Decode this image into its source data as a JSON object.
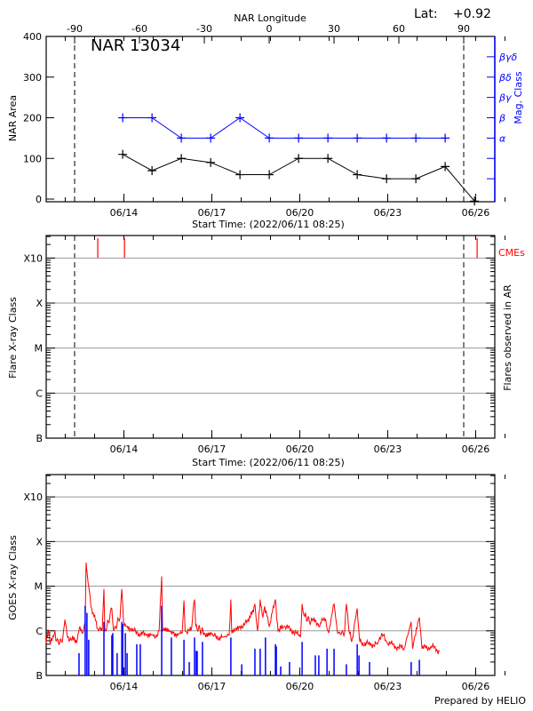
{
  "chart_data": [
    {
      "type": "line",
      "title": "NAR 13034",
      "lat_label": "Lat:",
      "lat_value": "+0.92",
      "top_axis_label": "NAR Longitude",
      "top_ticks": [
        -90,
        -60,
        -30,
        0,
        30,
        60,
        90
      ],
      "longitude_markers": [
        -90,
        90
      ],
      "xlabel": "Start Time: (2022/06/11 08:25)",
      "x_unit": "days since start",
      "xlim": [
        0,
        15.3
      ],
      "date_ticks": [
        {
          "label": "06/14",
          "t": 2.65
        },
        {
          "label": "06/17",
          "t": 5.65
        },
        {
          "label": "06/20",
          "t": 8.65
        },
        {
          "label": "06/23",
          "t": 11.65
        },
        {
          "label": "06/26",
          "t": 14.65
        }
      ],
      "ylabel": "NAR Area",
      "ylim": [
        0,
        400
      ],
      "yticks": [
        0,
        100,
        200,
        300,
        400
      ],
      "y2label": "Mag. Class",
      "y2ticks": [
        {
          "label": "α",
          "v": 150
        },
        {
          "label": "β",
          "v": 200
        },
        {
          "label": "βγ",
          "v": 250
        },
        {
          "label": "βδ",
          "v": 300
        },
        {
          "label": "βγδ",
          "v": 350
        }
      ],
      "series": [
        {
          "name": "NAR Area",
          "color": "#000000",
          "t": [
            2.61,
            3.61,
            4.61,
            5.61,
            6.61,
            7.61,
            8.61,
            9.61,
            10.61,
            11.61,
            12.61,
            13.61,
            14.61
          ],
          "values": [
            110,
            70,
            100,
            90,
            60,
            60,
            100,
            100,
            60,
            50,
            50,
            80,
            -5
          ]
        },
        {
          "name": "Mag. Class",
          "color": "#0000ff",
          "t": [
            2.61,
            3.61,
            4.61,
            5.61,
            6.61,
            7.61,
            8.61,
            9.61,
            10.61,
            11.61,
            12.61,
            13.61
          ],
          "values": [
            "β",
            "β",
            "α",
            "α",
            "β",
            "α",
            "α",
            "α",
            "α",
            "α",
            "α",
            "α"
          ]
        }
      ]
    },
    {
      "type": "scatter",
      "xlabel": "Start Time: (2022/06/11 08:25)",
      "ylabel": "Flare X-ray Class",
      "y2label": "Flares observed in AR",
      "yticks": [
        "B",
        "C",
        "M",
        "X",
        "X10"
      ],
      "legend": "CMEs",
      "cme_color": "#ff0000",
      "cmes_t": [
        1.76,
        2.67,
        14.7
      ],
      "flares": []
    },
    {
      "type": "line",
      "ylabel": "GOES X-ray Class",
      "yticks": [
        "B",
        "C",
        "M",
        "X",
        "X10"
      ],
      "ylim": [
        0,
        4.3
      ],
      "credit": "Prepared by HELIO",
      "series": [
        {
          "name": "GOES flux",
          "color": "#ff0000",
          "points": [
            [
              0,
              0.73
            ],
            [
              0.09,
              1.0
            ],
            [
              0.12,
              0.75
            ],
            [
              0.3,
              1.0
            ],
            [
              0.33,
              0.78
            ],
            [
              0.55,
              0.75
            ],
            [
              0.64,
              1.25
            ],
            [
              0.73,
              0.85
            ],
            [
              0.85,
              0.8
            ],
            [
              1.06,
              0.8
            ],
            [
              1.15,
              1.1
            ],
            [
              1.25,
              0.95
            ],
            [
              1.33,
              1.2
            ],
            [
              1.36,
              2.53
            ],
            [
              1.45,
              2.0
            ],
            [
              1.55,
              1.5
            ],
            [
              1.76,
              1.05
            ],
            [
              1.91,
              1.0
            ],
            [
              1.97,
              1.94
            ],
            [
              2.0,
              1.0
            ],
            [
              2.12,
              1.2
            ],
            [
              2.24,
              1.5
            ],
            [
              2.3,
              1.0
            ],
            [
              2.52,
              1.3
            ],
            [
              2.58,
              1.94
            ],
            [
              2.64,
              1.2
            ],
            [
              2.82,
              1.1
            ],
            [
              2.97,
              1.0
            ],
            [
              3.12,
              0.95
            ],
            [
              3.42,
              0.9
            ],
            [
              3.73,
              0.85
            ],
            [
              3.85,
              1.0
            ],
            [
              3.94,
              2.22
            ],
            [
              3.97,
              1.0
            ],
            [
              4.33,
              0.95
            ],
            [
              4.64,
              0.95
            ],
            [
              4.7,
              1.68
            ],
            [
              4.74,
              1.0
            ],
            [
              4.94,
              1.0
            ],
            [
              5.06,
              1.7
            ],
            [
              5.1,
              1.1
            ],
            [
              5.39,
              0.95
            ],
            [
              5.7,
              0.88
            ],
            [
              6.0,
              0.85
            ],
            [
              6.24,
              0.9
            ],
            [
              6.3,
              1.7
            ],
            [
              6.33,
              0.95
            ],
            [
              6.61,
              1.1
            ],
            [
              6.91,
              1.2
            ],
            [
              7.12,
              1.6
            ],
            [
              7.21,
              1.0
            ],
            [
              7.3,
              1.7
            ],
            [
              7.39,
              1.3
            ],
            [
              7.45,
              1.55
            ],
            [
              7.61,
              1.1
            ],
            [
              7.82,
              1.7
            ],
            [
              7.91,
              1.0
            ],
            [
              8.12,
              1.1
            ],
            [
              8.42,
              1.0
            ],
            [
              8.67,
              0.85
            ],
            [
              8.73,
              1.6
            ],
            [
              8.79,
              1.35
            ],
            [
              9.03,
              1.2
            ],
            [
              9.18,
              1.25
            ],
            [
              9.33,
              1.1
            ],
            [
              9.48,
              1.3
            ],
            [
              9.64,
              0.95
            ],
            [
              9.82,
              1.6
            ],
            [
              9.94,
              0.95
            ],
            [
              10.18,
              0.95
            ],
            [
              10.24,
              1.6
            ],
            [
              10.33,
              1.0
            ],
            [
              10.42,
              0.75
            ],
            [
              10.61,
              1.5
            ],
            [
              10.7,
              0.75
            ],
            [
              11.0,
              0.7
            ],
            [
              11.3,
              0.7
            ],
            [
              11.45,
              0.95
            ],
            [
              11.61,
              0.75
            ],
            [
              11.91,
              0.65
            ],
            [
              12.21,
              0.6
            ],
            [
              12.45,
              1.2
            ],
            [
              12.5,
              0.6
            ],
            [
              12.73,
              1.3
            ],
            [
              12.82,
              0.6
            ],
            [
              13.12,
              0.65
            ],
            [
              13.42,
              0.55
            ]
          ]
        },
        {
          "name": "Flares",
          "color": "#0000ff",
          "points": [
            [
              1.12,
              0.5
            ],
            [
              1.33,
              1.56
            ],
            [
              1.39,
              1.4
            ],
            [
              1.45,
              0.8
            ],
            [
              1.97,
              1.2
            ],
            [
              2.24,
              0.9
            ],
            [
              2.27,
              0.95
            ],
            [
              2.42,
              0.5
            ],
            [
              2.58,
              1.2
            ],
            [
              2.61,
              1.15
            ],
            [
              2.7,
              0.95
            ],
            [
              2.76,
              0.5
            ],
            [
              3.09,
              0.7
            ],
            [
              3.21,
              0.7
            ],
            [
              3.94,
              1.56
            ],
            [
              4.27,
              0.85
            ],
            [
              4.7,
              0.8
            ],
            [
              4.88,
              0.3
            ],
            [
              5.06,
              0.85
            ],
            [
              5.12,
              0.55
            ],
            [
              5.15,
              0.55
            ],
            [
              5.33,
              0.75
            ],
            [
              6.3,
              0.85
            ],
            [
              6.67,
              0.25
            ],
            [
              7.12,
              0.6
            ],
            [
              7.3,
              0.6
            ],
            [
              7.48,
              0.85
            ],
            [
              7.82,
              0.7
            ],
            [
              7.85,
              0.65
            ],
            [
              8.0,
              0.2
            ],
            [
              8.3,
              0.3
            ],
            [
              8.73,
              0.75
            ],
            [
              9.18,
              0.45
            ],
            [
              9.3,
              0.45
            ],
            [
              9.58,
              0.6
            ],
            [
              9.82,
              0.6
            ],
            [
              10.24,
              0.25
            ],
            [
              10.61,
              0.7
            ],
            [
              10.67,
              0.45
            ],
            [
              11.03,
              0.3
            ],
            [
              12.45,
              0.3
            ],
            [
              12.73,
              0.35
            ]
          ]
        }
      ]
    }
  ]
}
